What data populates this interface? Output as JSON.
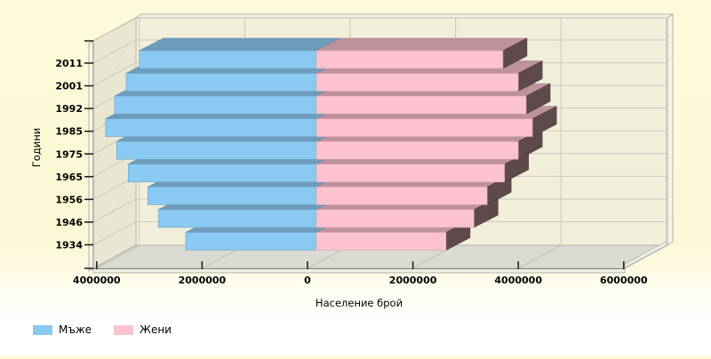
{
  "chart_data": {
    "type": "bar",
    "style": "3d-horizontal-population-pyramid",
    "categories": [
      "2011",
      "2001",
      "1992",
      "1985",
      "1975",
      "1965",
      "1956",
      "1946",
      "1934"
    ],
    "series": [
      {
        "name": "Мъже",
        "side": "left",
        "color": "#8ac9f2",
        "top_color": "#6e9cbc",
        "values": [
          3360000,
          3610000,
          3830000,
          4000000,
          3790000,
          3570000,
          3200000,
          3000000,
          2480000
        ]
      },
      {
        "name": "Жени",
        "side": "right",
        "color": "#fbc3d0",
        "top_color": "#be929d",
        "side_color": "#5f4a4b",
        "values": [
          3540000,
          3830000,
          3980000,
          4100000,
          3830000,
          3570000,
          3240000,
          2990000,
          2460000
        ]
      }
    ],
    "title": "",
    "xlabel": "Население брой",
    "ylabel": "Години",
    "x_ticks": {
      "labels": [
        "4000000",
        "2000000",
        "0",
        "2000000",
        "4000000",
        "6000000"
      ],
      "values": [
        -4000000,
        -2000000,
        0,
        2000000,
        4000000,
        6000000
      ]
    },
    "xlim": [
      -4300000,
      6200000
    ],
    "grid": true,
    "legend_position": "bottom-left",
    "background_color": "#fdfada",
    "wall_color": "#f1eeda",
    "floor_color": "#dadad3"
  },
  "legend": {
    "items": [
      {
        "label": "Мъже",
        "color": "#8ac9f2"
      },
      {
        "label": "Жени",
        "color": "#fbc3d0"
      }
    ]
  }
}
